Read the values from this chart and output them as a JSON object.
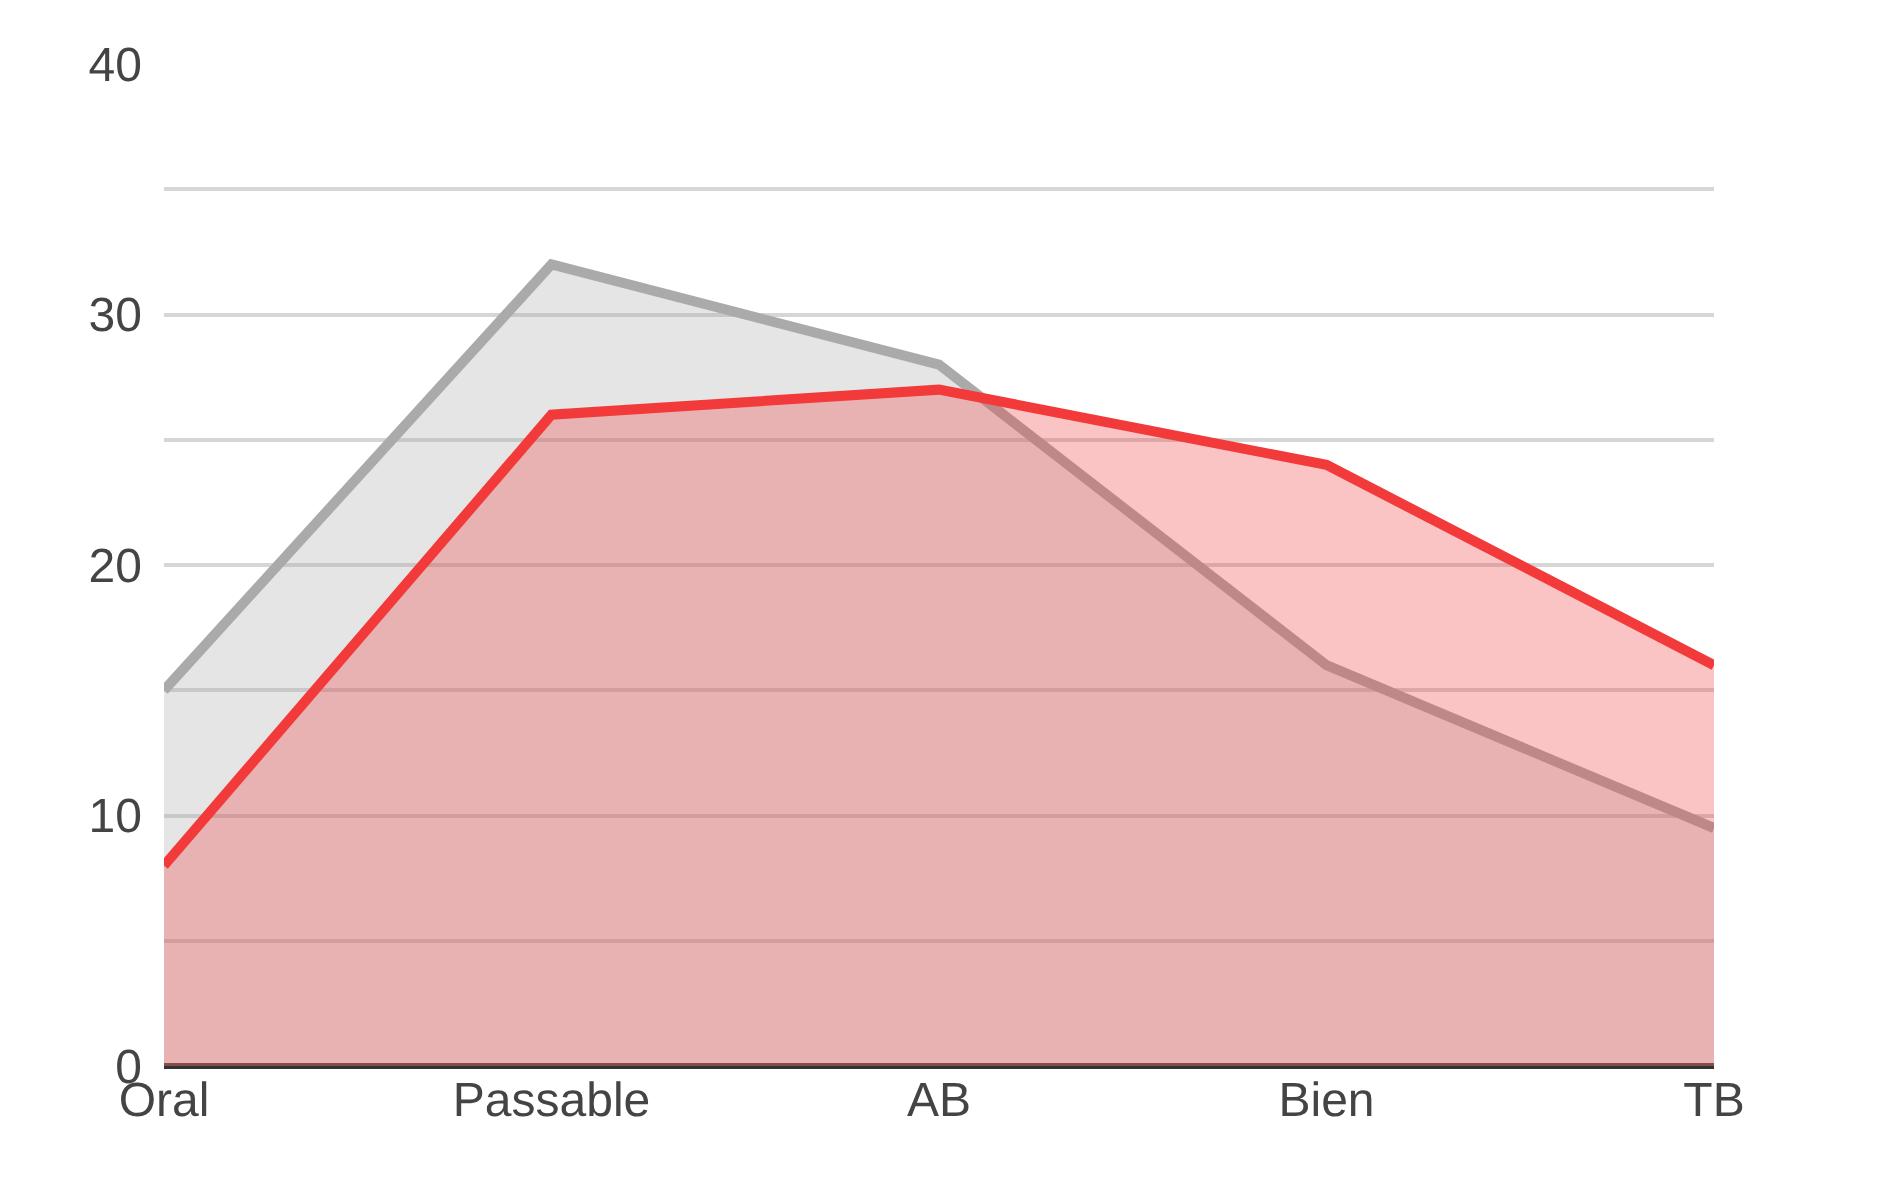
{
  "chart_data": {
    "type": "area",
    "categories": [
      "Oral",
      "Passable",
      "AB",
      "Bien",
      "TB"
    ],
    "series": [
      {
        "color": "#aaaaaa",
        "values": [
          15,
          32,
          28,
          16,
          9.5
        ]
      },
      {
        "color": "#f23a3a",
        "values": [
          8,
          26,
          27,
          24,
          16
        ]
      }
    ],
    "ylim": [
      0,
      40
    ],
    "yticks": [
      0,
      {
        "value": 5,
        "label": null
      },
      10,
      {
        "value": 15,
        "label": null
      },
      20,
      {
        "value": 25,
        "label": null
      },
      30,
      {
        "value": 35,
        "label": null
      },
      40
    ],
    "grid": "y"
  }
}
